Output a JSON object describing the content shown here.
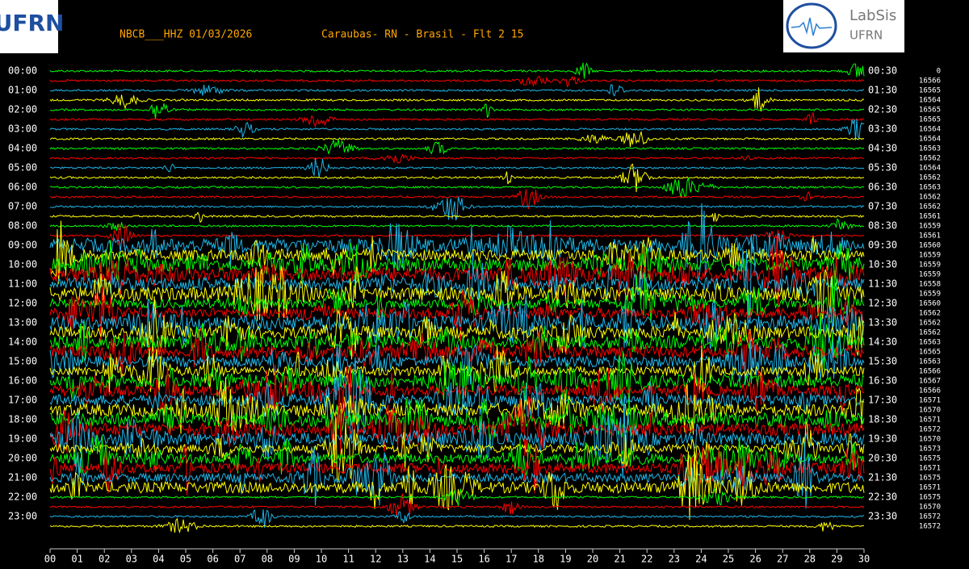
{
  "header": {
    "station": "NBCB___HHZ 01/03/2026",
    "location": "Caraubas- RN - Brasil - Flt 2 15",
    "left_logo": "UFRN",
    "right_logo": {
      "title": "LabSis",
      "subtitle": "UFRN"
    }
  },
  "left_labels": [
    "00:00",
    "01:00",
    "02:00",
    "03:00",
    "04:00",
    "05:00",
    "06:00",
    "07:00",
    "08:00",
    "09:00",
    "10:00",
    "11:00",
    "12:00",
    "13:00",
    "14:00",
    "15:00",
    "16:00",
    "17:00",
    "18:00",
    "19:00",
    "20:00",
    "21:00",
    "22:00",
    "23:00"
  ],
  "right_labels": [
    "00:30",
    "01:30",
    "02:30",
    "03:30",
    "04:30",
    "05:30",
    "06:30",
    "07:30",
    "08:30",
    "09:30",
    "10:30",
    "11:30",
    "12:30",
    "13:30",
    "14:30",
    "15:30",
    "16:30",
    "17:30",
    "18:30",
    "19:30",
    "20:30",
    "21:30",
    "22:30",
    "23:30"
  ],
  "counts": [
    "0",
    "16566",
    "16565",
    "16564",
    "16565",
    "16565",
    "16564",
    "16564",
    "16563",
    "16562",
    "16564",
    "16562",
    "16563",
    "16562",
    "16562",
    "16561",
    "16559",
    "16561",
    "16560",
    "16559",
    "16559",
    "16559",
    "16558",
    "16559",
    "16560",
    "16562",
    "16562",
    "16562",
    "16563",
    "16565",
    "16563",
    "16566",
    "16567",
    "16566",
    "16571",
    "16570",
    "16571",
    "16572",
    "16570",
    "16573",
    "16575",
    "16571",
    "16575",
    "16571",
    "16575",
    "16570",
    "16572",
    "16572"
  ],
  "minutes": [
    "00",
    "01",
    "02",
    "03",
    "04",
    "05",
    "06",
    "07",
    "08",
    "09",
    "10",
    "11",
    "12",
    "13",
    "14",
    "15",
    "16",
    "17",
    "18",
    "19",
    "20",
    "21",
    "22",
    "23",
    "24",
    "25",
    "26",
    "27",
    "28",
    "29",
    "30"
  ]
}
